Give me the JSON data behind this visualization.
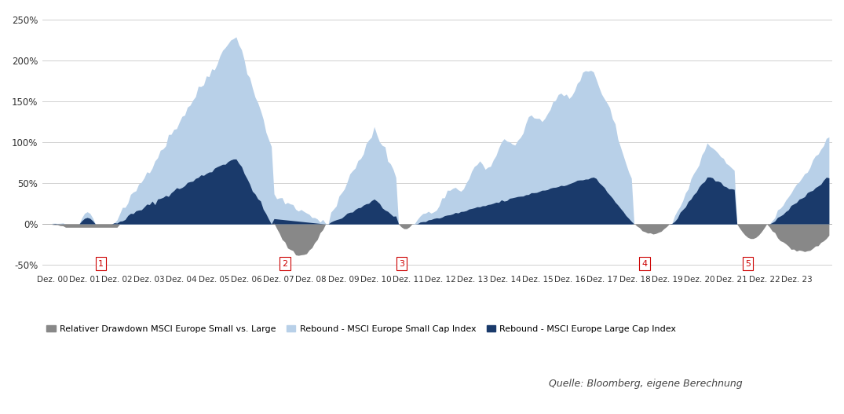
{
  "background_color": "#ffffff",
  "grid_color": "#d0d0d0",
  "color_small": "#b8d0e8",
  "color_large": "#1a3a6b",
  "color_drawdown": "#888888",
  "label_drawdown": "Relativer Drawdown MSCI Europe Small vs. Large",
  "label_small": "Rebound - MSCI Europe Small Cap Index",
  "label_large": "Rebound - MSCI Europe Large Cap Index",
  "source_text": "Quelle: Bloomberg, eigene Berechnung",
  "drawdown_numbers": [
    "1",
    "2",
    "3",
    "4",
    "5"
  ],
  "drawdown_x_positions": [
    1.5,
    7.2,
    10.8,
    18.3,
    21.5
  ],
  "xtick_positions": [
    0,
    1,
    2,
    3,
    4,
    5,
    6,
    7,
    8,
    9,
    10,
    11,
    12,
    13,
    14,
    15,
    16,
    17,
    18,
    19,
    20,
    21,
    22,
    23
  ],
  "xtick_labels": [
    "Dez. 00",
    "Dez. 01",
    "Dez. 02",
    "Dez. 03",
    "Dez. 04",
    "Dez. 05",
    "Dez. 06",
    "Dez. 07",
    "Dez. 08",
    "Dez. 09",
    "Dez. 10",
    "Dez. 11",
    "Dez. 12",
    "Dez. 13",
    "Dez. 14",
    "Dez. 15",
    "Dez. 16",
    "Dez. 17",
    "Dez. 18",
    "Dez. 19",
    "Dez. 20",
    "Dez. 21",
    "Dez. 22",
    "Dez. 23"
  ],
  "ytick_vals": [
    -0.5,
    0.0,
    0.5,
    1.0,
    1.5,
    2.0,
    2.5
  ],
  "ytick_labs": [
    "-50%",
    "0%",
    "50%",
    "100%",
    "150%",
    "200%",
    "250%"
  ],
  "ylim_bottom": -0.58,
  "ylim_top": 2.6,
  "xlim_left": -0.3,
  "xlim_right": 24.1
}
